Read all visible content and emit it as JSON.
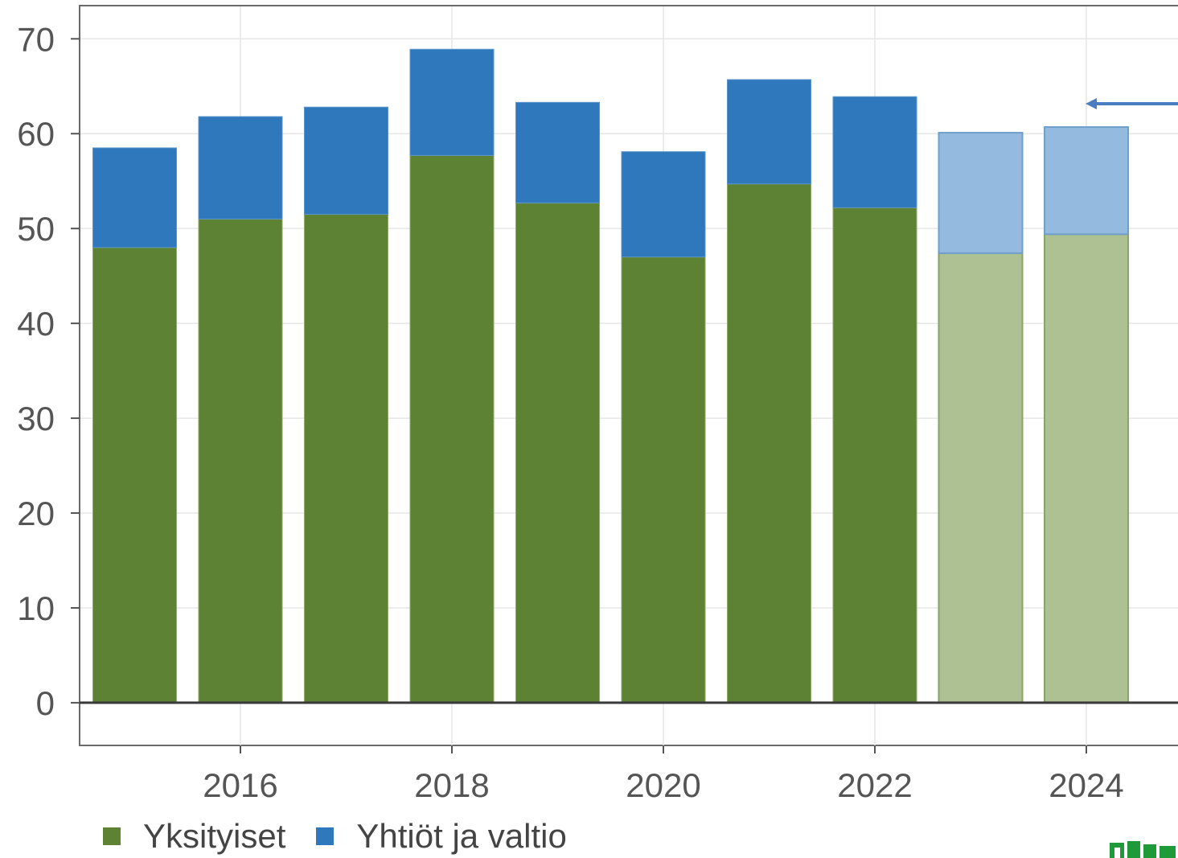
{
  "chart_data": {
    "type": "bar",
    "stacked": true,
    "categories": [
      "2015",
      "2016",
      "2017",
      "2018",
      "2019",
      "2020",
      "2021",
      "2022",
      "2023",
      "2024"
    ],
    "x_tick_labels": [
      "2016",
      "2018",
      "2020",
      "2022",
      "2024"
    ],
    "series": [
      {
        "name": "Yksityiset",
        "color": "#5e8233",
        "forecast_color": "#aec193",
        "values": [
          48.0,
          51.0,
          51.5,
          57.7,
          52.7,
          47.0,
          54.7,
          52.2,
          47.4,
          49.4
        ]
      },
      {
        "name": "Yhtiöt ja valtio",
        "color": "#2e78bb",
        "forecast_color": "#94bbdf",
        "values": [
          10.5,
          10.8,
          11.3,
          11.2,
          10.6,
          11.1,
          11.0,
          11.7,
          12.7,
          11.3
        ]
      }
    ],
    "forecast_from_index": 8,
    "ylim": [
      -4.5,
      73.5
    ],
    "yticks": [
      0,
      10,
      20,
      30,
      40,
      50,
      60,
      70
    ],
    "grid": true,
    "legend": "bottom-left",
    "annotation": "arrow pointing left near 2024 bar"
  }
}
